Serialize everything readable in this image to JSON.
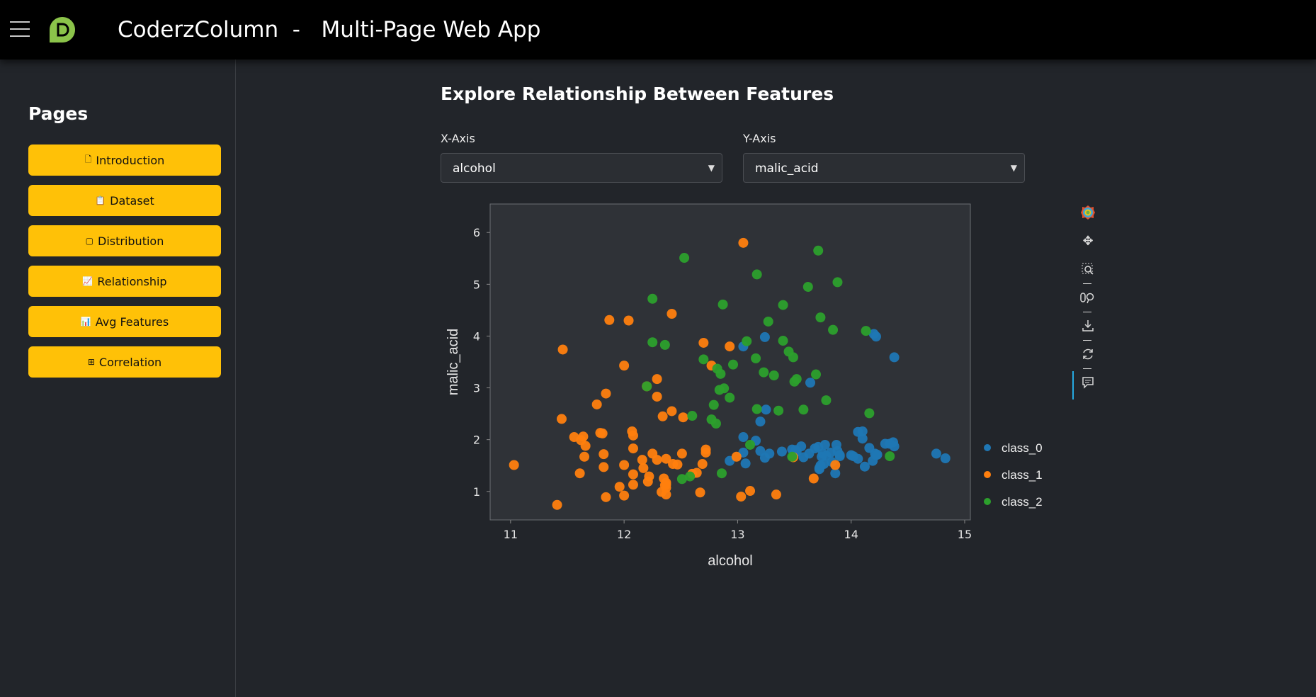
{
  "header": {
    "title": "CoderzColumn  -   Multi-Page Web App"
  },
  "sidebar": {
    "title": "Pages",
    "items": [
      {
        "label": "Introduction",
        "icon": "document-icon"
      },
      {
        "label": "Dataset",
        "icon": "clipboard-icon"
      },
      {
        "label": "Distribution",
        "icon": "area-chart-icon"
      },
      {
        "label": "Relationship",
        "icon": "line-chart-icon"
      },
      {
        "label": "Avg Features",
        "icon": "bar-chart-icon"
      },
      {
        "label": "Correlation",
        "icon": "grid-icon"
      }
    ]
  },
  "main": {
    "title": "Explore Relationship Between Features",
    "x_select": {
      "label": "X-Axis",
      "value": "alcohol"
    },
    "y_select": {
      "label": "Y-Axis",
      "value": "malic_acid"
    }
  },
  "toolbar": {
    "tools": [
      "bokeh-logo-icon",
      "pan-icon",
      "box-zoom-icon",
      "wheel-zoom-icon",
      "save-icon",
      "reset-icon",
      "hover-icon"
    ]
  },
  "chart_data": {
    "type": "scatter",
    "xlabel": "alcohol",
    "ylabel": "malic_acid",
    "xlim": [
      10.82,
      15.05
    ],
    "ylim": [
      0.45,
      6.55
    ],
    "x_ticks": [
      "11",
      "12",
      "13",
      "14",
      "15"
    ],
    "y_ticks": [
      "1",
      "2",
      "3",
      "4",
      "5",
      "6"
    ],
    "legend_position": "right",
    "colors": {
      "class_0": "#1f77b4",
      "class_1": "#ff7f0e",
      "class_2": "#2ca02c"
    },
    "series": [
      {
        "name": "class_0",
        "points": [
          [
            13.05,
            3.8
          ],
          [
            13.24,
            3.98
          ],
          [
            13.64,
            3.1
          ],
          [
            14.22,
            3.99
          ],
          [
            14.2,
            4.04
          ],
          [
            14.38,
            3.59
          ],
          [
            13.2,
            2.35
          ],
          [
            13.25,
            2.58
          ],
          [
            12.93,
            1.59
          ],
          [
            13.05,
            2.05
          ],
          [
            13.05,
            1.75
          ],
          [
            13.07,
            1.54
          ],
          [
            13.16,
            1.98
          ],
          [
            13.2,
            1.78
          ],
          [
            13.24,
            1.65
          ],
          [
            13.28,
            1.73
          ],
          [
            13.39,
            1.77
          ],
          [
            13.48,
            1.81
          ],
          [
            13.5,
            1.73
          ],
          [
            13.56,
            1.87
          ],
          [
            13.58,
            1.66
          ],
          [
            13.63,
            1.73
          ],
          [
            13.68,
            1.83
          ],
          [
            13.71,
            1.86
          ],
          [
            13.72,
            1.43
          ],
          [
            13.73,
            1.5
          ],
          [
            13.74,
            1.67
          ],
          [
            13.75,
            1.73
          ],
          [
            13.76,
            1.53
          ],
          [
            13.77,
            1.9
          ],
          [
            13.78,
            1.69
          ],
          [
            13.82,
            1.75
          ],
          [
            13.83,
            1.57
          ],
          [
            13.86,
            1.35
          ],
          [
            13.87,
            1.9
          ],
          [
            13.88,
            1.78
          ],
          [
            13.9,
            1.68
          ],
          [
            14.02,
            1.68
          ],
          [
            14.06,
            1.63
          ],
          [
            14.06,
            2.15
          ],
          [
            14.1,
            2.16
          ],
          [
            14.1,
            2.02
          ],
          [
            14.12,
            1.48
          ],
          [
            14.16,
            1.84
          ],
          [
            14.19,
            1.59
          ],
          [
            14.21,
            1.73
          ],
          [
            14.22,
            1.7
          ],
          [
            14.23,
            1.71
          ],
          [
            14.3,
            1.92
          ],
          [
            14.34,
            1.92
          ],
          [
            14.37,
            1.95
          ],
          [
            14.38,
            1.87
          ],
          [
            14.75,
            1.73
          ],
          [
            14.83,
            1.64
          ],
          [
            13.51,
            1.8
          ],
          [
            13.52,
            1.77
          ],
          [
            13.9,
            1.7
          ],
          [
            14.0,
            1.7
          ],
          [
            13.72,
            1.45
          ]
        ]
      },
      {
        "name": "class_1",
        "points": [
          [
            11.03,
            1.51
          ],
          [
            11.41,
            0.74
          ],
          [
            11.45,
            2.4
          ],
          [
            11.46,
            3.74
          ],
          [
            11.56,
            2.05
          ],
          [
            11.61,
            1.35
          ],
          [
            11.62,
            1.99
          ],
          [
            11.64,
            2.06
          ],
          [
            11.65,
            1.67
          ],
          [
            11.66,
            1.88
          ],
          [
            11.76,
            2.68
          ],
          [
            11.79,
            2.13
          ],
          [
            11.81,
            2.12
          ],
          [
            11.82,
            1.72
          ],
          [
            11.82,
            1.47
          ],
          [
            11.84,
            0.89
          ],
          [
            11.84,
            2.89
          ],
          [
            11.87,
            4.31
          ],
          [
            11.96,
            1.09
          ],
          [
            12.0,
            0.92
          ],
          [
            12.0,
            1.51
          ],
          [
            12.0,
            3.43
          ],
          [
            12.04,
            4.3
          ],
          [
            12.07,
            2.16
          ],
          [
            12.08,
            1.13
          ],
          [
            12.08,
            1.33
          ],
          [
            12.08,
            2.08
          ],
          [
            12.08,
            1.83
          ],
          [
            12.16,
            1.61
          ],
          [
            12.17,
            1.45
          ],
          [
            12.2,
            3.03
          ],
          [
            12.21,
            1.19
          ],
          [
            12.22,
            1.29
          ],
          [
            12.25,
            1.73
          ],
          [
            12.29,
            1.61
          ],
          [
            12.29,
            2.83
          ],
          [
            12.29,
            3.17
          ],
          [
            12.33,
            0.99
          ],
          [
            12.34,
            2.45
          ],
          [
            12.35,
            1.25
          ],
          [
            12.36,
            1.12
          ],
          [
            12.37,
            1.07
          ],
          [
            12.37,
            0.94
          ],
          [
            12.37,
            1.13
          ],
          [
            12.37,
            1.17
          ],
          [
            12.37,
            1.63
          ],
          [
            12.42,
            2.55
          ],
          [
            12.42,
            4.43
          ],
          [
            12.43,
            1.53
          ],
          [
            12.47,
            1.52
          ],
          [
            12.51,
            1.73
          ],
          [
            12.52,
            2.43
          ],
          [
            12.6,
            1.34
          ],
          [
            12.64,
            1.36
          ],
          [
            12.67,
            0.98
          ],
          [
            12.69,
            1.53
          ],
          [
            12.7,
            3.87
          ],
          [
            12.72,
            1.75
          ],
          [
            12.72,
            1.81
          ],
          [
            12.77,
            3.43
          ],
          [
            12.93,
            3.8
          ],
          [
            12.99,
            1.67
          ],
          [
            13.03,
            0.9
          ],
          [
            13.05,
            5.8
          ],
          [
            13.11,
            1.01
          ],
          [
            13.34,
            0.94
          ],
          [
            13.49,
            1.66
          ],
          [
            13.67,
            1.25
          ],
          [
            13.86,
            1.51
          ]
        ]
      },
      {
        "name": "class_2",
        "points": [
          [
            12.2,
            3.03
          ],
          [
            12.25,
            4.72
          ],
          [
            12.25,
            3.88
          ],
          [
            12.36,
            3.83
          ],
          [
            12.51,
            1.24
          ],
          [
            12.53,
            5.51
          ],
          [
            12.58,
            1.29
          ],
          [
            12.6,
            2.46
          ],
          [
            12.7,
            3.55
          ],
          [
            12.77,
            2.39
          ],
          [
            12.79,
            2.67
          ],
          [
            12.81,
            2.31
          ],
          [
            12.82,
            3.37
          ],
          [
            12.84,
            2.96
          ],
          [
            12.85,
            3.27
          ],
          [
            12.86,
            1.35
          ],
          [
            12.87,
            4.61
          ],
          [
            12.88,
            2.99
          ],
          [
            12.93,
            2.81
          ],
          [
            12.96,
            3.45
          ],
          [
            13.08,
            3.9
          ],
          [
            13.11,
            1.9
          ],
          [
            13.16,
            3.57
          ],
          [
            13.17,
            5.19
          ],
          [
            13.17,
            2.59
          ],
          [
            13.23,
            3.3
          ],
          [
            13.27,
            4.28
          ],
          [
            13.32,
            3.24
          ],
          [
            13.36,
            2.56
          ],
          [
            13.4,
            3.91
          ],
          [
            13.4,
            4.6
          ],
          [
            13.45,
            3.7
          ],
          [
            13.48,
            1.67
          ],
          [
            13.49,
            3.59
          ],
          [
            13.5,
            3.12
          ],
          [
            13.52,
            3.17
          ],
          [
            13.58,
            2.58
          ],
          [
            13.62,
            4.95
          ],
          [
            13.69,
            3.26
          ],
          [
            13.71,
            5.65
          ],
          [
            13.73,
            4.36
          ],
          [
            13.78,
            2.76
          ],
          [
            13.84,
            4.12
          ],
          [
            13.88,
            5.04
          ],
          [
            14.13,
            4.1
          ],
          [
            14.16,
            2.51
          ],
          [
            14.34,
            1.68
          ]
        ]
      }
    ]
  }
}
